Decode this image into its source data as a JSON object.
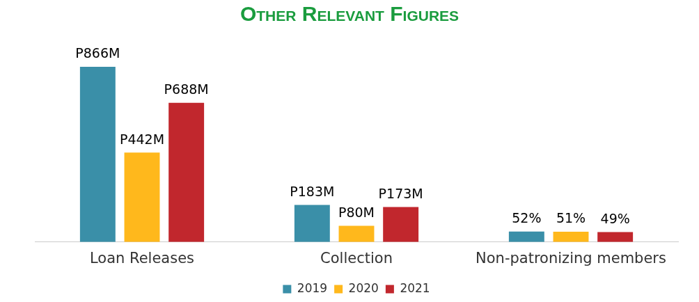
{
  "chart_data": {
    "type": "bar",
    "title": "Other Relevant Figures",
    "categories": [
      "Loan Releases",
      "Collection",
      "Non-patronizing members"
    ],
    "series": [
      {
        "name": "2019",
        "color": "#3a8fa8",
        "values": [
          866,
          183,
          52
        ],
        "value_labels": [
          "P866M",
          "P183M",
          "52%"
        ]
      },
      {
        "name": "2020",
        "color": "#ffb81c",
        "values": [
          442,
          80,
          51
        ],
        "value_labels": [
          "P442M",
          "P80M",
          "51%"
        ]
      },
      {
        "name": "2021",
        "color": "#c1272d",
        "values": [
          688,
          173,
          49
        ],
        "value_labels": [
          "P688M",
          "P173M",
          "49%"
        ]
      }
    ],
    "legend": "bottom",
    "grid": false
  }
}
